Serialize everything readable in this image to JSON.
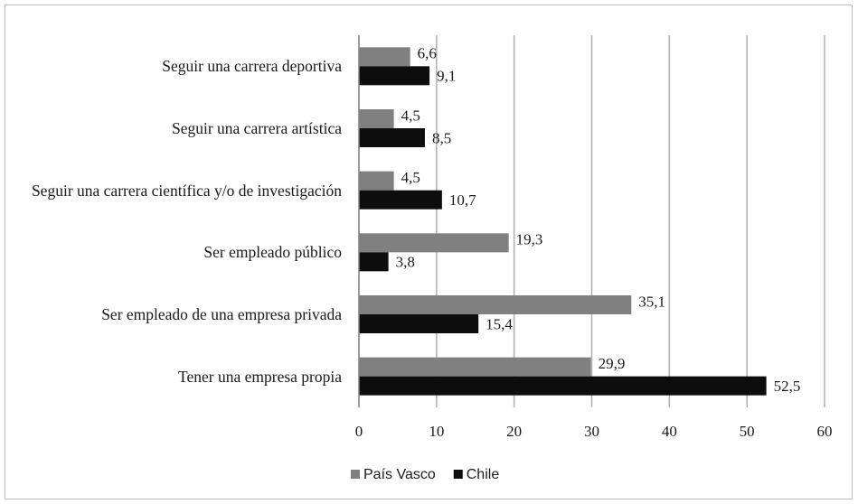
{
  "chart_data": {
    "type": "bar",
    "orientation": "horizontal",
    "categories": [
      "Seguir una carrera deportiva",
      "Seguir una carrera artística",
      "Seguir una carrera científica y/o de investigación",
      "Ser empleado público",
      "Ser empleado de una empresa privada",
      "Tener una empresa propia"
    ],
    "series": [
      {
        "name": "País Vasco",
        "color": "#808080",
        "values": [
          6.6,
          4.5,
          4.5,
          19.3,
          35.1,
          29.9
        ],
        "value_labels": [
          "6,6",
          "4,5",
          "4,5",
          "19,3",
          "35,1",
          "29,9"
        ]
      },
      {
        "name": "Chile",
        "color": "#0d0d0d",
        "values": [
          9.1,
          8.5,
          10.7,
          3.8,
          15.4,
          52.5
        ],
        "value_labels": [
          "9,1",
          "8,5",
          "10,7",
          "3,8",
          "15,4",
          "52,5"
        ]
      }
    ],
    "xlim": [
      0,
      60
    ],
    "xticks": [
      0,
      10,
      20,
      30,
      40,
      50,
      60
    ],
    "grid": true,
    "legend": "bottom"
  }
}
